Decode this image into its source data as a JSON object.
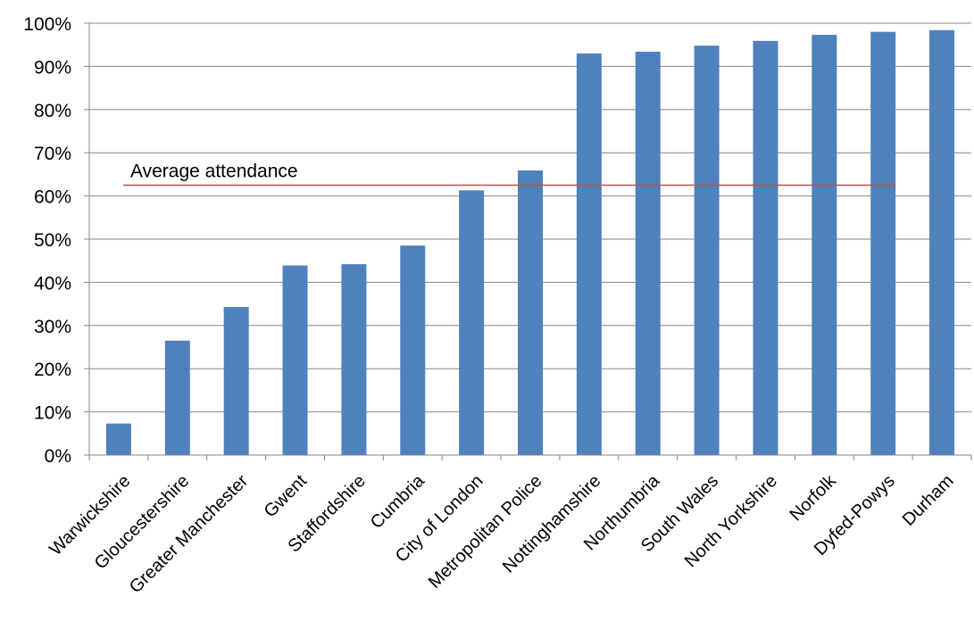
{
  "chart_data": {
    "type": "bar",
    "title": "",
    "xlabel": "",
    "ylabel": "",
    "ylim": [
      0,
      100
    ],
    "y_ticks": [
      "0%",
      "10%",
      "20%",
      "30%",
      "40%",
      "50%",
      "60%",
      "70%",
      "80%",
      "90%",
      "100%"
    ],
    "grid": true,
    "legend": "none",
    "categories": [
      "Warwickshire",
      "Gloucestershire",
      "Greater Manchester",
      "Gwent",
      "Staffordshire",
      "Cumbria",
      "City of London",
      "Metropolitan Police",
      "Nottinghamshire",
      "Northumbria",
      "South Wales",
      "North Yorkshire",
      "Norfolk",
      "Dyfed-Powys",
      "Durham"
    ],
    "values": [
      7.3,
      26.5,
      34.3,
      43.9,
      44.2,
      48.5,
      61.3,
      65.9,
      93.0,
      93.4,
      94.8,
      95.9,
      97.3,
      98.0,
      98.4
    ],
    "bar_color": "#4f81bd",
    "reference_line": {
      "label": "Average attendance",
      "value": 62.5,
      "color": "#c0504d"
    }
  }
}
